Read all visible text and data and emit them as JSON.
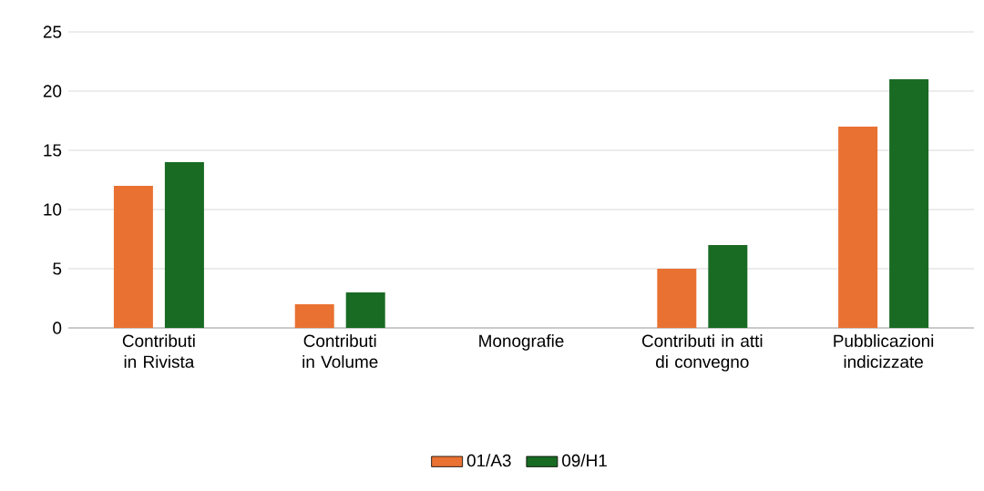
{
  "chart_data": {
    "type": "bar",
    "categories": [
      "Contributi in Rivista",
      "Contributi in Volume",
      "Monografie",
      "Contributi in atti di convegno",
      "Pubblicazioni indicizzate"
    ],
    "series": [
      {
        "name": "01/A3",
        "color": "#e97132",
        "values": [
          12,
          2,
          0,
          5,
          17
        ]
      },
      {
        "name": "09/H1",
        "color": "#196b24",
        "values": [
          14,
          3,
          0,
          7,
          21
        ]
      }
    ],
    "ylim": [
      0,
      25
    ],
    "yticks": [
      0,
      5,
      10,
      15,
      20,
      25
    ],
    "grid": "y",
    "legend": "bottom"
  }
}
